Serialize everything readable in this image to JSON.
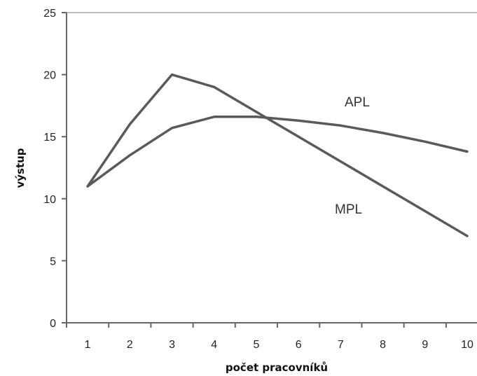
{
  "chart_data": {
    "type": "line",
    "title": "",
    "xlabel": "počet pracovníků",
    "ylabel": "výstup",
    "x": [
      1,
      2,
      3,
      4,
      5,
      6,
      7,
      8,
      9,
      10
    ],
    "xlim": [
      0.5,
      10
    ],
    "ylim": [
      0,
      25
    ],
    "x_ticks": [
      "1",
      "2",
      "3",
      "4",
      "5",
      "6",
      "7",
      "8",
      "9",
      "10"
    ],
    "y_ticks": [
      "0",
      "5",
      "10",
      "15",
      "20",
      "25"
    ],
    "grid": false,
    "legend": "none (inline series labels)",
    "series": [
      {
        "name": "APL",
        "color": "#5a5a5a",
        "values": [
          11.0,
          13.5,
          15.7,
          16.6,
          16.6,
          16.3,
          15.9,
          15.3,
          14.6,
          13.8
        ]
      },
      {
        "name": "MPL",
        "color": "#5a5a5a",
        "values": [
          11.0,
          16.0,
          20.0,
          19.0,
          17.0,
          15.0,
          13.0,
          11.0,
          9.0,
          7.0
        ]
      }
    ]
  }
}
